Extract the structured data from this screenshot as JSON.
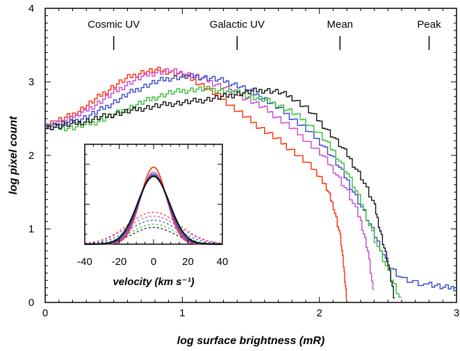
{
  "chart_data": [
    {
      "type": "line",
      "step": true,
      "title": "",
      "xlabel": "log surface brightness (mR)",
      "ylabel": "log pixel count",
      "xlim": [
        0,
        3
      ],
      "ylim": [
        0,
        4
      ],
      "xticks": [
        "0",
        "1",
        "2",
        "3"
      ],
      "yticks": [
        "0",
        "1",
        "2",
        "3",
        "4"
      ],
      "annotations": [
        {
          "label": "Cosmic UV",
          "x": 0.5
        },
        {
          "label": "Galactic UV",
          "x": 1.4
        },
        {
          "label": "Mean",
          "x": 2.15
        },
        {
          "label": "Peak",
          "x": 2.8
        }
      ],
      "series": [
        {
          "color": "#ff2a00",
          "points": [
            [
              0,
              2.42
            ],
            [
              0.1,
              2.48
            ],
            [
              0.2,
              2.56
            ],
            [
              0.3,
              2.68
            ],
            [
              0.4,
              2.82
            ],
            [
              0.5,
              2.95
            ],
            [
              0.6,
              3.06
            ],
            [
              0.7,
              3.13
            ],
            [
              0.8,
              3.16
            ],
            [
              0.9,
              3.14
            ],
            [
              1.0,
              3.09
            ],
            [
              1.1,
              3.0
            ],
            [
              1.2,
              2.88
            ],
            [
              1.3,
              2.75
            ],
            [
              1.4,
              2.6
            ],
            [
              1.5,
              2.46
            ],
            [
              1.6,
              2.33
            ],
            [
              1.7,
              2.2
            ],
            [
              1.8,
              2.06
            ],
            [
              1.9,
              1.9
            ],
            [
              2.0,
              1.72
            ],
            [
              2.05,
              1.55
            ],
            [
              2.1,
              1.3
            ],
            [
              2.15,
              0.9
            ],
            [
              2.18,
              0.4
            ],
            [
              2.2,
              0.0
            ]
          ]
        },
        {
          "color": "#cc44cc",
          "points": [
            [
              0,
              2.4
            ],
            [
              0.1,
              2.45
            ],
            [
              0.2,
              2.52
            ],
            [
              0.3,
              2.62
            ],
            [
              0.4,
              2.74
            ],
            [
              0.5,
              2.86
            ],
            [
              0.6,
              2.98
            ],
            [
              0.7,
              3.07
            ],
            [
              0.8,
              3.13
            ],
            [
              0.9,
              3.15
            ],
            [
              1.0,
              3.12
            ],
            [
              1.1,
              3.07
            ],
            [
              1.2,
              3.0
            ],
            [
              1.3,
              2.92
            ],
            [
              1.4,
              2.83
            ],
            [
              1.5,
              2.74
            ],
            [
              1.6,
              2.63
            ],
            [
              1.7,
              2.5
            ],
            [
              1.8,
              2.36
            ],
            [
              1.9,
              2.2
            ],
            [
              2.0,
              2.03
            ],
            [
              2.1,
              1.8
            ],
            [
              2.2,
              1.5
            ],
            [
              2.3,
              1.1
            ],
            [
              2.35,
              0.7
            ],
            [
              2.4,
              0.0
            ]
          ]
        },
        {
          "color": "#3344cc",
          "points": [
            [
              0,
              2.4
            ],
            [
              0.1,
              2.42
            ],
            [
              0.2,
              2.46
            ],
            [
              0.3,
              2.53
            ],
            [
              0.4,
              2.62
            ],
            [
              0.5,
              2.73
            ],
            [
              0.6,
              2.84
            ],
            [
              0.7,
              2.93
            ],
            [
              0.8,
              3.0
            ],
            [
              0.9,
              3.05
            ],
            [
              1.0,
              3.07
            ],
            [
              1.1,
              3.07
            ],
            [
              1.2,
              3.05
            ],
            [
              1.3,
              3.01
            ],
            [
              1.4,
              2.95
            ],
            [
              1.5,
              2.86
            ],
            [
              1.6,
              2.76
            ],
            [
              1.7,
              2.64
            ],
            [
              1.8,
              2.5
            ],
            [
              1.9,
              2.35
            ],
            [
              2.0,
              2.18
            ],
            [
              2.1,
              1.95
            ],
            [
              2.2,
              1.65
            ],
            [
              2.3,
              1.3
            ],
            [
              2.4,
              0.9
            ],
            [
              2.5,
              0.5
            ],
            [
              2.6,
              0.3
            ],
            [
              2.8,
              0.25
            ],
            [
              2.9,
              0.2
            ],
            [
              3.0,
              0.2
            ]
          ]
        },
        {
          "color": "#33bb33",
          "points": [
            [
              0,
              2.38
            ],
            [
              0.1,
              2.37
            ],
            [
              0.2,
              2.38
            ],
            [
              0.3,
              2.42
            ],
            [
              0.4,
              2.48
            ],
            [
              0.5,
              2.56
            ],
            [
              0.6,
              2.64
            ],
            [
              0.7,
              2.72
            ],
            [
              0.8,
              2.79
            ],
            [
              0.9,
              2.85
            ],
            [
              1.0,
              2.88
            ],
            [
              1.1,
              2.9
            ],
            [
              1.2,
              2.9
            ],
            [
              1.3,
              2.88
            ],
            [
              1.4,
              2.85
            ],
            [
              1.5,
              2.8
            ],
            [
              1.6,
              2.75
            ],
            [
              1.7,
              2.68
            ],
            [
              1.8,
              2.58
            ],
            [
              1.9,
              2.45
            ],
            [
              2.0,
              2.28
            ],
            [
              2.1,
              2.05
            ],
            [
              2.2,
              1.75
            ],
            [
              2.3,
              1.35
            ],
            [
              2.4,
              0.85
            ],
            [
              2.5,
              0.4
            ],
            [
              2.6,
              0.0
            ]
          ]
        },
        {
          "color": "#111111",
          "points": [
            [
              0,
              2.38
            ],
            [
              0.1,
              2.4
            ],
            [
              0.2,
              2.43
            ],
            [
              0.3,
              2.47
            ],
            [
              0.4,
              2.52
            ],
            [
              0.5,
              2.56
            ],
            [
              0.6,
              2.6
            ],
            [
              0.7,
              2.64
            ],
            [
              0.8,
              2.67
            ],
            [
              0.9,
              2.7
            ],
            [
              1.0,
              2.72
            ],
            [
              1.1,
              2.74
            ],
            [
              1.2,
              2.77
            ],
            [
              1.3,
              2.8
            ],
            [
              1.4,
              2.84
            ],
            [
              1.5,
              2.87
            ],
            [
              1.6,
              2.89
            ],
            [
              1.7,
              2.86
            ],
            [
              1.8,
              2.78
            ],
            [
              1.9,
              2.64
            ],
            [
              2.0,
              2.45
            ],
            [
              2.1,
              2.24
            ],
            [
              2.2,
              2.0
            ],
            [
              2.3,
              1.7
            ],
            [
              2.4,
              1.3
            ],
            [
              2.45,
              0.9
            ],
            [
              2.5,
              0.5
            ],
            [
              2.55,
              0.0
            ]
          ]
        }
      ]
    },
    {
      "type": "line",
      "title": "",
      "xlabel": "velocity (km s⁻¹)",
      "ylabel": "",
      "xlim": [
        -40,
        40
      ],
      "ylim": [
        0,
        2.5
      ],
      "xticks": [
        "-40",
        "-20",
        "0",
        "20",
        "40"
      ],
      "series": [
        {
          "color": "#ff2a00",
          "dash": false,
          "amp": 1.93,
          "sigma": 7.5
        },
        {
          "color": "#cc44cc",
          "dash": false,
          "amp": 1.8,
          "sigma": 8.0
        },
        {
          "color": "#3344cc",
          "dash": false,
          "amp": 1.75,
          "sigma": 8.5
        },
        {
          "color": "#33bb33",
          "dash": false,
          "amp": 1.72,
          "sigma": 9.0
        },
        {
          "color": "#111111",
          "dash": false,
          "amp": 1.7,
          "sigma": 9.2
        },
        {
          "color": "#ff2a00",
          "dash": true,
          "amp": 0.8,
          "sigma": 15
        },
        {
          "color": "#cc44cc",
          "dash": true,
          "amp": 0.7,
          "sigma": 15
        },
        {
          "color": "#3344cc",
          "dash": true,
          "amp": 0.6,
          "sigma": 14
        },
        {
          "color": "#33bb33",
          "dash": true,
          "amp": 0.5,
          "sigma": 13
        },
        {
          "color": "#111111",
          "dash": true,
          "amp": 0.42,
          "sigma": 12
        }
      ]
    }
  ]
}
